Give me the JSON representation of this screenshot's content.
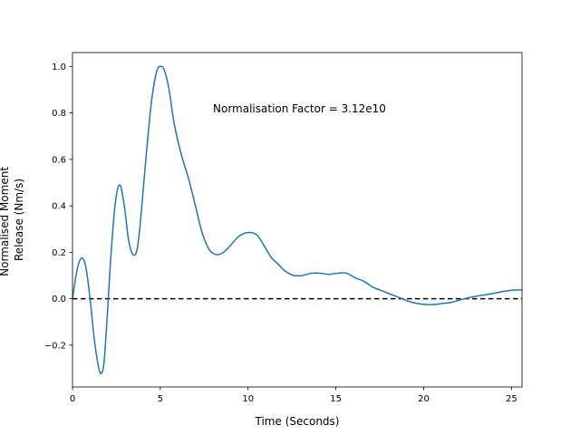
{
  "chart_data": {
    "type": "line",
    "xlabel": "Time (Seconds)",
    "ylabel_lines": [
      "Normalised Moment",
      "Release (Nm/s)"
    ],
    "annotation": "Normalisation Factor = 3.12e10",
    "xlim": [
      0,
      25.6
    ],
    "ylim": [
      -0.38,
      1.06
    ],
    "xticks": [
      0,
      5,
      10,
      15,
      20,
      25
    ],
    "yticks": [
      -0.2,
      0.0,
      0.2,
      0.4,
      0.6,
      0.8,
      1.0
    ],
    "xtick_labels": [
      "0",
      "5",
      "10",
      "15",
      "20",
      "25"
    ],
    "ytick_labels": [
      "−0.2",
      "0.0",
      "0.2",
      "0.4",
      "0.6",
      "0.8",
      "1.0"
    ],
    "reference_line": {
      "y": 0.0,
      "style": "dashed",
      "color": "#000000"
    },
    "grid": false,
    "series": [
      {
        "color": "#1f77b4",
        "x": [
          0,
          0.25,
          0.5,
          0.75,
          1.0,
          1.25,
          1.5,
          1.65,
          1.8,
          2.0,
          2.2,
          2.45,
          2.7,
          2.95,
          3.2,
          3.45,
          3.7,
          3.95,
          4.2,
          4.5,
          4.8,
          5.05,
          5.25,
          5.5,
          5.8,
          6.2,
          6.6,
          7.0,
          7.4,
          7.8,
          8.2,
          8.6,
          9.0,
          9.5,
          10.0,
          10.5,
          10.9,
          11.3,
          11.7,
          12.1,
          12.6,
          13.1,
          13.6,
          14.1,
          14.6,
          15.1,
          15.6,
          16.1,
          16.6,
          17.1,
          17.6,
          18.1,
          18.6,
          19.1,
          19.6,
          20.1,
          20.6,
          21.1,
          21.6,
          22.1,
          22.6,
          23.1,
          23.6,
          24.1,
          24.6,
          25.1,
          25.6
        ],
        "y": [
          0.0,
          0.12,
          0.175,
          0.14,
          0.0,
          -0.18,
          -0.3,
          -0.32,
          -0.27,
          -0.05,
          0.2,
          0.42,
          0.49,
          0.4,
          0.25,
          0.19,
          0.22,
          0.4,
          0.62,
          0.85,
          0.98,
          1.0,
          0.98,
          0.9,
          0.75,
          0.62,
          0.52,
          0.4,
          0.28,
          0.21,
          0.19,
          0.2,
          0.23,
          0.27,
          0.285,
          0.275,
          0.23,
          0.18,
          0.15,
          0.12,
          0.1,
          0.1,
          0.11,
          0.11,
          0.105,
          0.11,
          0.11,
          0.09,
          0.075,
          0.05,
          0.035,
          0.02,
          0.005,
          -0.01,
          -0.02,
          -0.025,
          -0.025,
          -0.02,
          -0.015,
          -0.005,
          0.005,
          0.012,
          0.018,
          0.025,
          0.032,
          0.037,
          0.038
        ]
      }
    ]
  }
}
